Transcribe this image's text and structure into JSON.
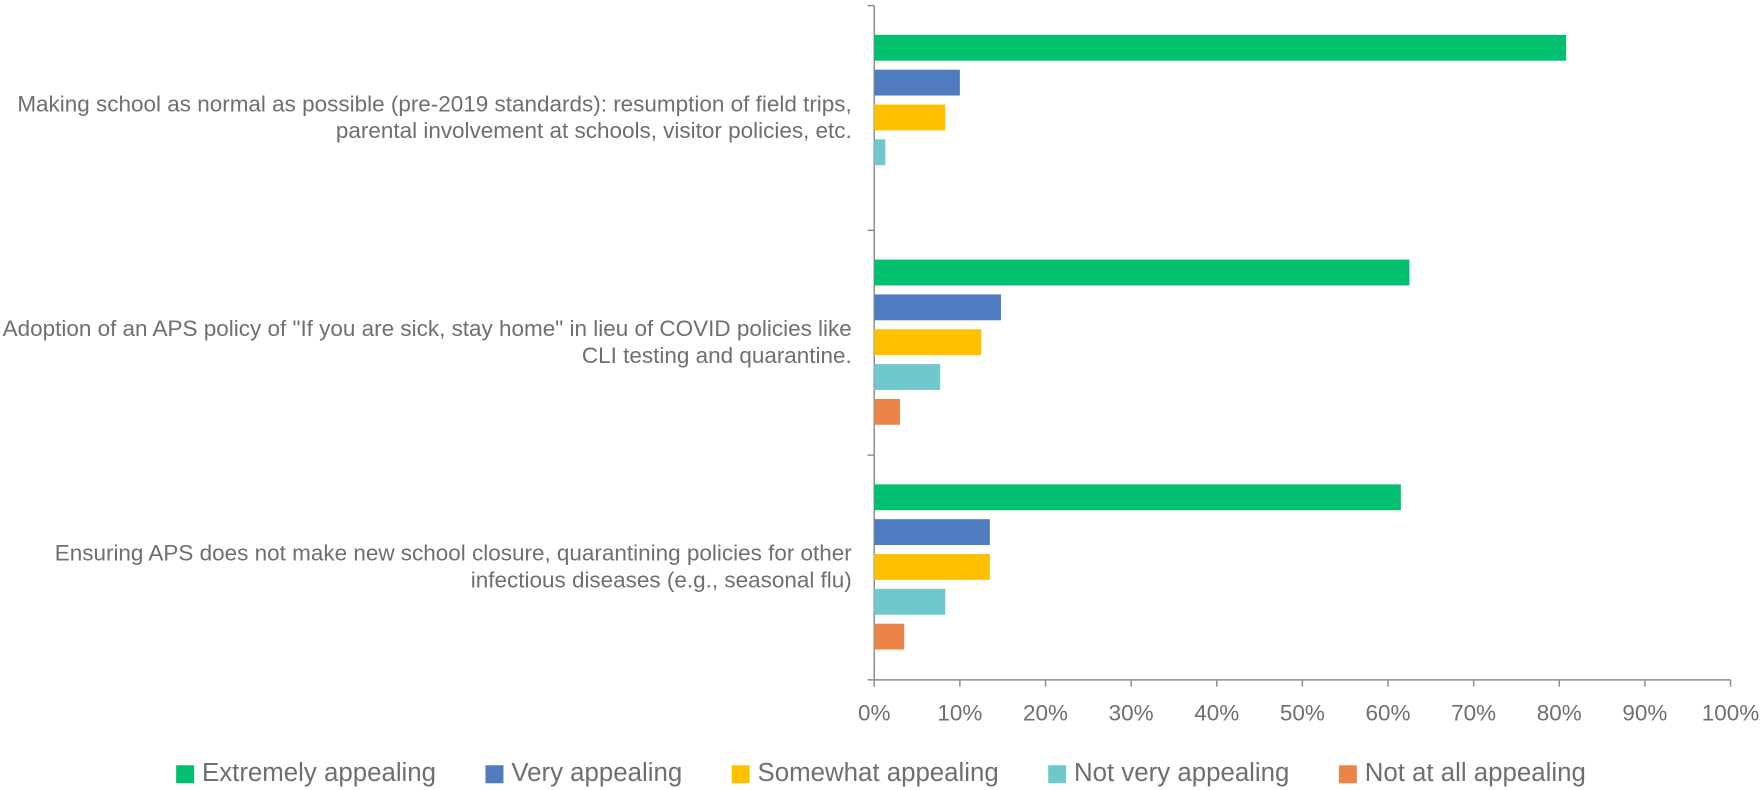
{
  "chart_data": {
    "type": "bar",
    "orientation": "horizontal",
    "categories": [
      "Making school as normal as possible (pre-2019 standards): resumption of field trips, parental involvement at schools, visitor policies, etc.",
      "Adoption of an APS policy of \"If you are sick, stay home\" in lieu of COVID policies like CLI testing and quarantine.",
      "Ensuring APS does not make new school closure, quarantining policies for other infectious diseases (e.g., seasonal flu)"
    ],
    "series": [
      {
        "name": "Extremely appealing",
        "color": "#00bf6f",
        "values": [
          80.8,
          62.5,
          61.5
        ]
      },
      {
        "name": "Very appealing",
        "color": "#4f7bc0",
        "values": [
          10,
          14.8,
          13.5
        ]
      },
      {
        "name": "Somewhat appealing",
        "color": "#ffc000",
        "values": [
          8.3,
          12.5,
          13.5
        ]
      },
      {
        "name": "Not very appealing",
        "color": "#70c8cd",
        "values": [
          1.3,
          7.7,
          8.3
        ]
      },
      {
        "name": "Not at all appealing",
        "color": "#ea8449",
        "values": [
          0,
          3,
          3.5
        ]
      }
    ],
    "xlim": [
      0,
      100
    ],
    "xticks": [
      {
        "value": 0,
        "label": "0%"
      },
      {
        "value": 10,
        "label": "10%"
      },
      {
        "value": 20,
        "label": "20%"
      },
      {
        "value": 30,
        "label": "30%"
      },
      {
        "value": 40,
        "label": "40%"
      },
      {
        "value": 50,
        "label": "50%"
      },
      {
        "value": 60,
        "label": "60%"
      },
      {
        "value": 70,
        "label": "70%"
      },
      {
        "value": 80,
        "label": "80%"
      },
      {
        "value": 90,
        "label": "90%"
      },
      {
        "value": 100,
        "label": "100%"
      }
    ],
    "legend": "bottom"
  }
}
